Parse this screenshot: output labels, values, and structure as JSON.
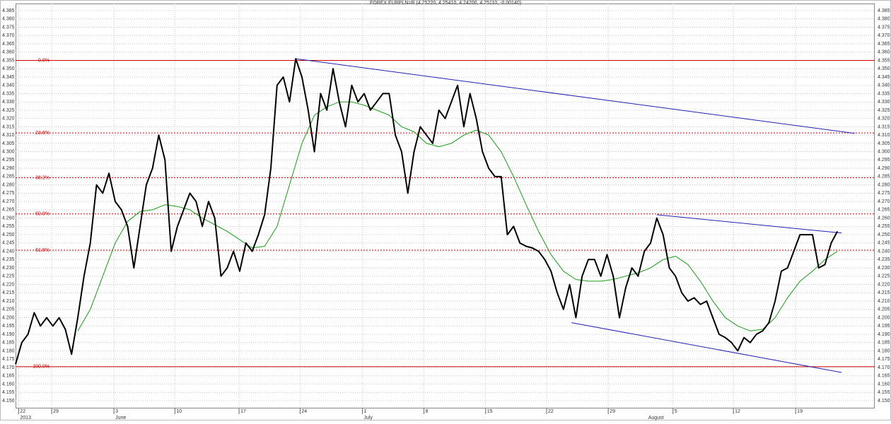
{
  "chart_data": {
    "type": "line",
    "title": "FOREX EURPLN=R (4.25220, 4.25410, 4.24200, 4.25110, -0.00140)",
    "ylim": [
      4.15,
      4.385
    ],
    "yticks": [
      {
        "value": 4.15,
        "label": "4.150"
      },
      4.155,
      {
        "value": 4.16,
        "label": "4.160"
      },
      4.165,
      {
        "value": 4.17,
        "label": "4.170"
      },
      4.175,
      {
        "value": 4.18,
        "label": "4.180"
      },
      4.185,
      {
        "value": 4.19,
        "label": "4.190"
      },
      4.195,
      {
        "value": 4.2,
        "label": "4.200"
      },
      4.205,
      {
        "value": 4.21,
        "label": "4.210"
      },
      4.215,
      {
        "value": 4.22,
        "label": "4.220"
      },
      4.225,
      {
        "value": 4.23,
        "label": "4.230"
      },
      4.235,
      {
        "value": 4.24,
        "label": "4.240"
      },
      4.245,
      {
        "value": 4.25,
        "label": "4.250"
      },
      4.255,
      {
        "value": 4.26,
        "label": "4.260"
      },
      4.265,
      {
        "value": 4.27,
        "label": "4.270"
      },
      4.275,
      {
        "value": 4.28,
        "label": "4.280"
      },
      4.285,
      {
        "value": 4.29,
        "label": "4.290"
      },
      4.295,
      {
        "value": 4.3,
        "label": "4.300"
      },
      4.305,
      {
        "value": 4.31,
        "label": "4.310"
      },
      4.315,
      {
        "value": 4.32,
        "label": "4.320"
      },
      4.325,
      {
        "value": 4.33,
        "label": "4.330"
      },
      4.335,
      {
        "value": 4.34,
        "label": "4.340"
      },
      4.345,
      {
        "value": 4.35,
        "label": "4.350"
      },
      4.355,
      {
        "value": 4.36,
        "label": "4.360"
      },
      4.365,
      {
        "value": 4.37,
        "label": "4.370"
      },
      4.375,
      {
        "value": 4.38,
        "label": "4.380"
      },
      4.385
    ],
    "xlim": [
      0,
      138
    ],
    "xticks": [
      {
        "value": 0.5,
        "label": "22"
      },
      {
        "value": 5.8,
        "label": "29"
      },
      {
        "value": 15.8,
        "label": "3"
      },
      {
        "value": 25.6,
        "label": "10"
      },
      {
        "value": 35.9,
        "label": "17"
      },
      {
        "value": 45.7,
        "label": "24"
      },
      {
        "value": 55.7,
        "label": "1"
      },
      {
        "value": 65.6,
        "label": "8"
      },
      {
        "value": 75.5,
        "label": "15"
      },
      {
        "value": 85.3,
        "label": "22"
      },
      {
        "value": 95.2,
        "label": "29"
      },
      {
        "value": 105.6,
        "label": "5"
      },
      {
        "value": 115.3,
        "label": "12"
      },
      {
        "value": 125.3,
        "label": "19"
      }
    ],
    "month_labels": [
      {
        "value": 0.5,
        "label": "2013"
      },
      {
        "value": 15.8,
        "label": "June"
      },
      {
        "value": 55.7,
        "label": "July"
      },
      {
        "value": 101.4,
        "label": "August"
      }
    ],
    "grid": true,
    "series": [
      {
        "color": "#000000",
        "x": [
          0,
          1,
          2,
          3,
          4,
          5,
          6,
          7,
          8,
          9,
          10,
          11,
          12,
          13,
          14,
          15,
          16,
          17,
          18,
          19,
          20,
          21,
          22,
          23,
          24,
          25,
          26,
          27,
          28,
          29,
          30,
          31,
          32,
          33,
          34,
          35,
          36,
          37,
          38,
          39,
          40,
          41,
          42,
          43,
          44,
          45,
          46,
          47,
          48,
          49,
          50,
          51,
          52,
          53,
          54,
          55,
          56,
          57,
          58,
          59,
          60,
          61,
          62,
          63,
          64,
          65,
          66,
          67,
          68,
          69,
          70,
          71,
          72,
          73,
          74,
          75,
          76,
          77,
          78,
          79,
          80,
          81,
          82,
          83,
          84,
          85,
          86,
          87,
          88,
          89,
          90,
          91,
          92,
          93,
          94,
          95,
          96,
          97,
          98,
          99,
          100,
          101,
          102,
          103,
          104,
          105,
          106,
          107,
          108,
          109,
          110,
          111,
          112,
          113,
          114,
          115,
          116,
          117,
          118,
          119,
          120,
          121,
          122,
          123,
          124,
          125,
          126,
          127,
          128,
          129,
          130,
          131,
          132
        ],
        "values": [
          4.172,
          4.185,
          4.19,
          4.203,
          4.195,
          4.2,
          4.195,
          4.2,
          4.193,
          4.178,
          4.2,
          4.225,
          4.245,
          4.28,
          4.275,
          4.287,
          4.27,
          4.265,
          4.255,
          4.23,
          4.255,
          4.28,
          4.29,
          4.31,
          4.295,
          4.24,
          4.255,
          4.265,
          4.275,
          4.27,
          4.255,
          4.27,
          4.26,
          4.225,
          4.23,
          4.24,
          4.228,
          4.245,
          4.24,
          4.25,
          4.262,
          4.29,
          4.34,
          4.345,
          4.33,
          4.356,
          4.345,
          4.325,
          4.3,
          4.335,
          4.325,
          4.35,
          4.33,
          4.315,
          4.34,
          4.33,
          4.335,
          4.325,
          4.33,
          4.335,
          4.335,
          4.31,
          4.3,
          4.275,
          4.3,
          4.315,
          4.31,
          4.305,
          4.325,
          4.32,
          4.33,
          4.34,
          4.315,
          4.335,
          4.32,
          4.3,
          4.29,
          4.285,
          4.285,
          4.25,
          4.255,
          4.245,
          4.243,
          4.242,
          4.24,
          4.235,
          4.228,
          4.215,
          4.205,
          4.22,
          4.2,
          4.225,
          4.235,
          4.235,
          4.225,
          4.238,
          4.225,
          4.2,
          4.218,
          4.23,
          4.225,
          4.24,
          4.245,
          4.26,
          4.25,
          4.23,
          4.225,
          4.215,
          4.21,
          4.212,
          4.208,
          4.21,
          4.2,
          4.19,
          4.188,
          4.185,
          4.18,
          4.188,
          4.185,
          4.19,
          4.192,
          4.197,
          4.21,
          4.228,
          4.23,
          4.24,
          4.25,
          4.25,
          4.25,
          4.23,
          4.232,
          4.245,
          4.252
        ]
      },
      {
        "color": "#1a9a1a",
        "x": [
          10,
          12,
          14,
          16,
          18,
          20,
          22,
          24,
          26,
          28,
          30,
          32,
          34,
          36,
          38,
          40,
          42,
          44,
          46,
          48,
          50,
          52,
          54,
          56,
          58,
          60,
          62,
          64,
          66,
          68,
          70,
          72,
          74,
          76,
          78,
          80,
          82,
          84,
          86,
          88,
          90,
          92,
          94,
          96,
          98,
          100,
          102,
          104,
          106,
          108,
          110,
          112,
          114,
          116,
          118,
          120,
          122,
          124,
          126,
          128,
          130,
          132
        ],
        "values": [
          4.192,
          4.205,
          4.225,
          4.245,
          4.258,
          4.264,
          4.265,
          4.268,
          4.267,
          4.265,
          4.26,
          4.256,
          4.252,
          4.247,
          4.242,
          4.243,
          4.255,
          4.28,
          4.305,
          4.322,
          4.327,
          4.33,
          4.33,
          4.328,
          4.325,
          4.322,
          4.315,
          4.312,
          4.305,
          4.303,
          4.305,
          4.31,
          4.313,
          4.31,
          4.3,
          4.285,
          4.268,
          4.252,
          4.238,
          4.228,
          4.223,
          4.222,
          4.222,
          4.223,
          4.225,
          4.227,
          4.23,
          4.235,
          4.237,
          4.232,
          4.222,
          4.21,
          4.2,
          4.195,
          4.192,
          4.193,
          4.2,
          4.212,
          4.222,
          4.228,
          4.235,
          4.24
        ]
      }
    ],
    "fib_color": "#cc0000",
    "fib_levels": [
      {
        "label": "0.0%",
        "value": 4.355
      },
      {
        "label": "23.6%",
        "value": 4.3113
      },
      {
        "label": "38.2%",
        "value": 4.2843
      },
      {
        "label": "50.0%",
        "value": 4.2625
      },
      {
        "label": "61.8%",
        "value": 4.2407
      },
      {
        "label": "100.0%",
        "value": 4.1705
      }
    ],
    "trend_color": "#2020b0",
    "trendlines": [
      {
        "x": [
          45,
          134.8
        ],
        "values": [
          4.356,
          4.311
        ]
      },
      {
        "x": [
          103,
          132.7
        ],
        "values": [
          4.262,
          4.251
        ]
      },
      {
        "x": [
          89.3,
          132.7
        ],
        "values": [
          4.197,
          4.167
        ]
      }
    ]
  }
}
